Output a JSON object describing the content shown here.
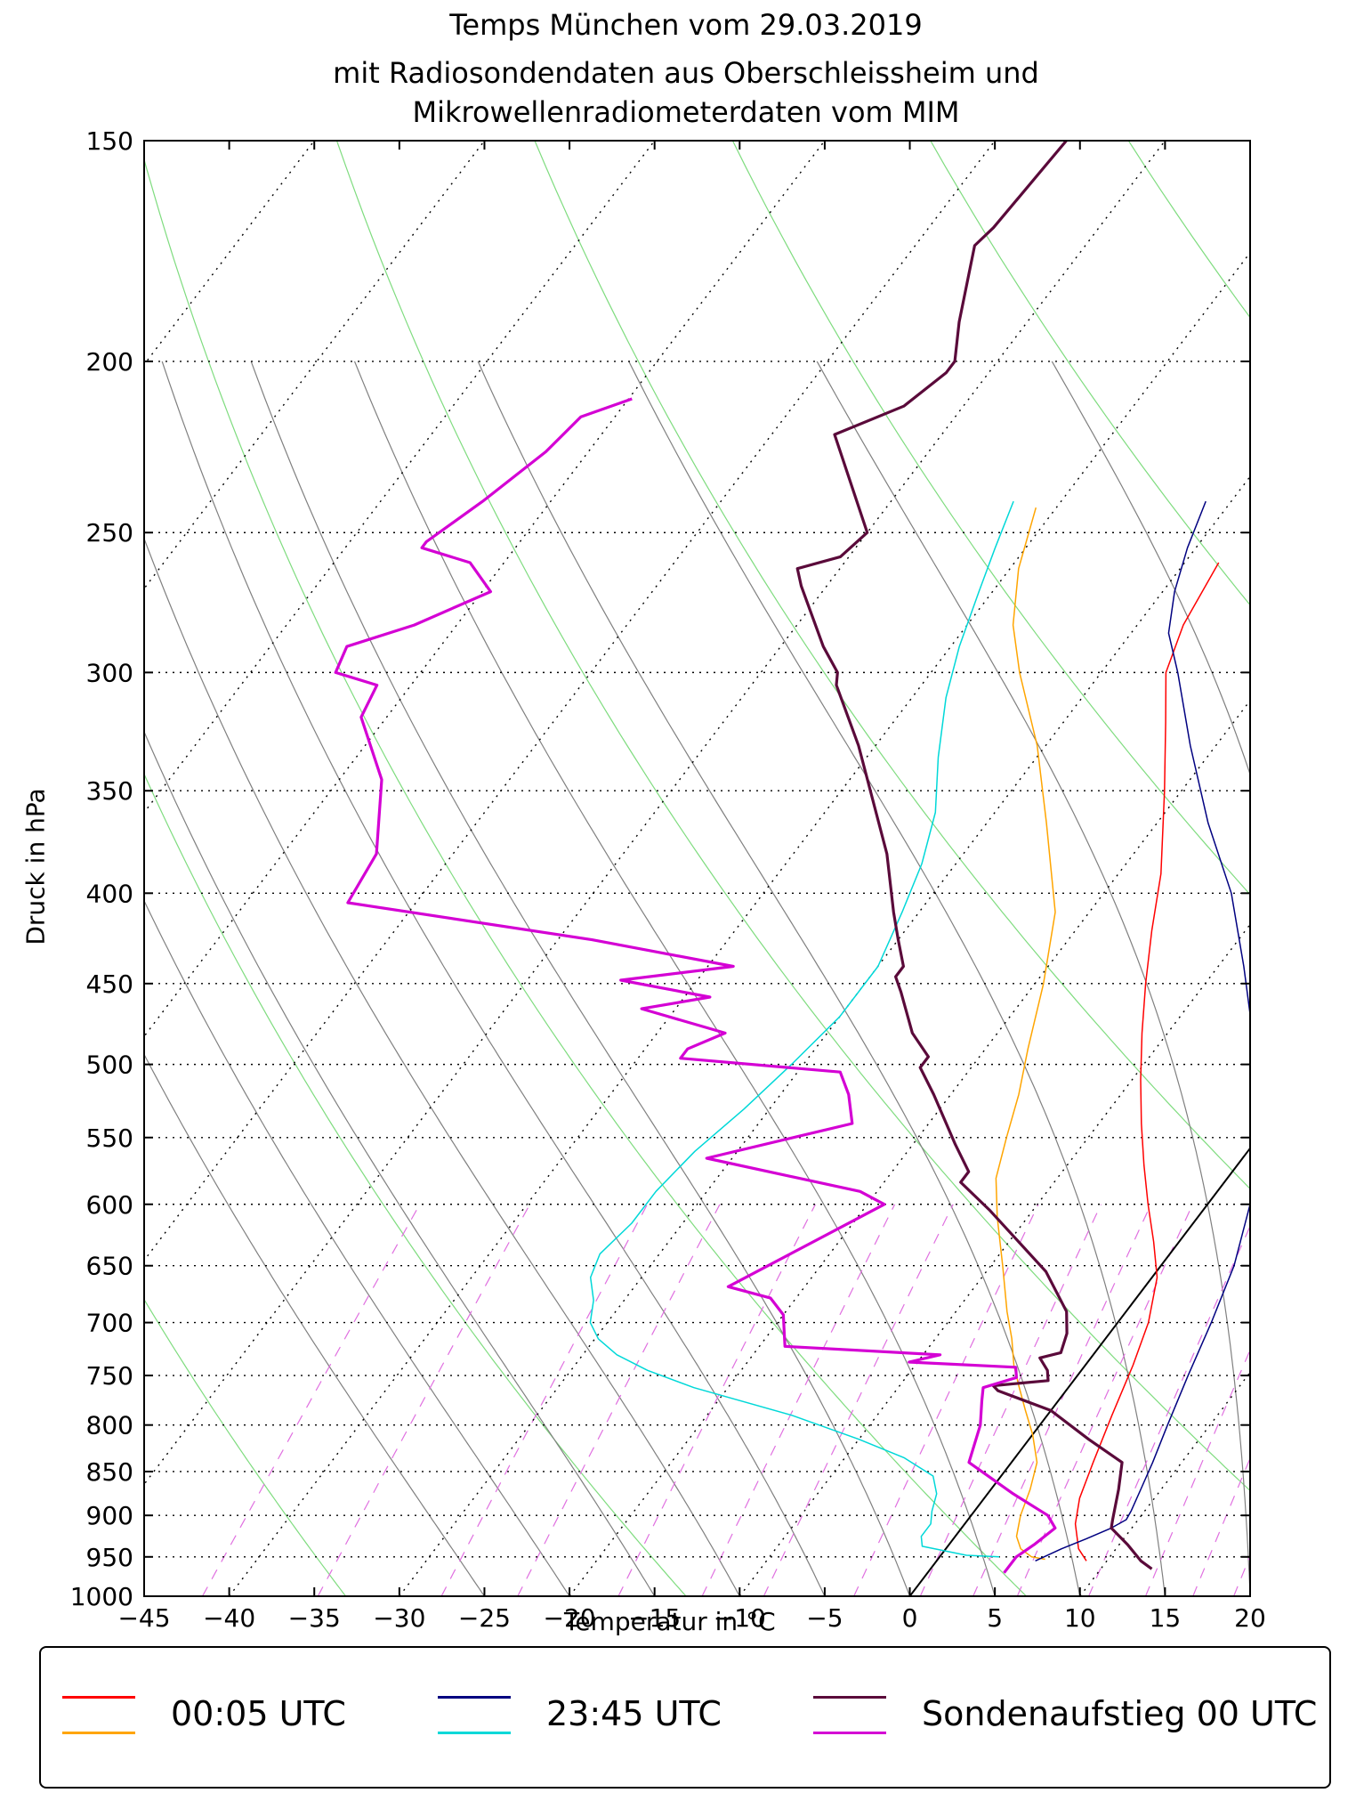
{
  "title": {
    "line1": "Temps München vom 29.03.2019",
    "line2": "mit Radiosondendaten aus Oberschleissheim und",
    "line3": "Mikrowellenradiometerdaten vom MIM"
  },
  "chart_data": {
    "type": "line",
    "subtype": "skew-T log-p diagram",
    "xlabel": "Temperatur in °C",
    "ylabel": "Druck in hPa",
    "xlim": [
      -45,
      20
    ],
    "ylim": [
      1000,
      150
    ],
    "yscale": "log",
    "x_ticks": [
      -45,
      -40,
      -35,
      -30,
      -25,
      -20,
      -15,
      -10,
      -5,
      0,
      5,
      10,
      15,
      20
    ],
    "x_tick_labels": [
      "−45",
      "−40",
      "−35",
      "−30",
      "−25",
      "−20",
      "−15",
      "−10",
      "−5",
      "0",
      "5",
      "10",
      "15",
      "20"
    ],
    "y_ticks": [
      150,
      200,
      250,
      300,
      350,
      400,
      450,
      500,
      550,
      600,
      650,
      700,
      750,
      800,
      850,
      900,
      950,
      1000
    ],
    "legend_position": "bottom",
    "series": [
      {
        "name": "00:05 UTC",
        "variable": "temperature",
        "color": "#ff0000",
        "width": 1.5,
        "points": [
          [
            -28,
            260
          ],
          [
            -27.3,
            282
          ],
          [
            -26.2,
            300
          ],
          [
            -24,
            320
          ],
          [
            -21,
            350
          ],
          [
            -17.5,
            390
          ],
          [
            -15.5,
            420
          ],
          [
            -13.5,
            450
          ],
          [
            -11.5,
            480
          ],
          [
            -9.5,
            510
          ],
          [
            -7.5,
            540
          ],
          [
            -5.5,
            570
          ],
          [
            -3.5,
            600
          ],
          [
            -1.5,
            630
          ],
          [
            0.3,
            660
          ],
          [
            1.8,
            700
          ],
          [
            2.8,
            740
          ],
          [
            3.8,
            790
          ],
          [
            4.8,
            840
          ],
          [
            5.6,
            880
          ],
          [
            6.5,
            910
          ],
          [
            7.8,
            940
          ],
          [
            8.8,
            955
          ]
        ]
      },
      {
        "name": "00:05 UTC",
        "variable": "dewpoint",
        "color": "#ffa500",
        "width": 1.5,
        "points": [
          [
            -41.2,
            242
          ],
          [
            -39.5,
            262
          ],
          [
            -37.3,
            282
          ],
          [
            -34.8,
            300
          ],
          [
            -30.5,
            330
          ],
          [
            -26.5,
            365
          ],
          [
            -22,
            410
          ],
          [
            -19.5,
            450
          ],
          [
            -17.5,
            490
          ],
          [
            -16,
            520
          ],
          [
            -14.8,
            550
          ],
          [
            -13.6,
            580
          ],
          [
            -11.8,
            610
          ],
          [
            -9.3,
            650
          ],
          [
            -7,
            690
          ],
          [
            -5.5,
            715
          ],
          [
            -4.2,
            740
          ],
          [
            -3,
            760
          ],
          [
            -1.5,
            785
          ],
          [
            0,
            810
          ],
          [
            1.5,
            840
          ],
          [
            2.3,
            870
          ],
          [
            2.9,
            900
          ],
          [
            3.6,
            925
          ],
          [
            4.4,
            940
          ],
          [
            5.4,
            950
          ],
          [
            6.3,
            953
          ]
        ]
      },
      {
        "name": "23:45 UTC",
        "variable": "temperature",
        "color": "#000080",
        "width": 1.5,
        "points": [
          [
            -31.5,
            240
          ],
          [
            -30.5,
            255
          ],
          [
            -29.3,
            270
          ],
          [
            -27.8,
            285
          ],
          [
            -25.5,
            300
          ],
          [
            -21.5,
            330
          ],
          [
            -17,
            365
          ],
          [
            -12.5,
            400
          ],
          [
            -8.5,
            440
          ],
          [
            -5,
            480
          ],
          [
            -2,
            520
          ],
          [
            0.3,
            560
          ],
          [
            2.5,
            600
          ],
          [
            4.3,
            650
          ],
          [
            5.5,
            700
          ],
          [
            6.5,
            750
          ],
          [
            7.5,
            800
          ],
          [
            8.3,
            840
          ],
          [
            8.8,
            870
          ],
          [
            9.2,
            895
          ],
          [
            9.3,
            905
          ],
          [
            8.8,
            915
          ],
          [
            7.8,
            928
          ],
          [
            6.8,
            940
          ],
          [
            5.8,
            955
          ]
        ]
      },
      {
        "name": "23:45 UTC",
        "variable": "dewpoint",
        "color": "#00d8d8",
        "width": 1.5,
        "points": [
          [
            -42.8,
            240
          ],
          [
            -41.8,
            255
          ],
          [
            -40.8,
            270
          ],
          [
            -39.5,
            290
          ],
          [
            -38,
            310
          ],
          [
            -35.8,
            335
          ],
          [
            -33.5,
            360
          ],
          [
            -32,
            385
          ],
          [
            -31,
            410
          ],
          [
            -30,
            440
          ],
          [
            -30,
            470
          ],
          [
            -30.7,
            500
          ],
          [
            -31.5,
            530
          ],
          [
            -32.5,
            560
          ],
          [
            -33,
            590
          ],
          [
            -33,
            615
          ],
          [
            -33.5,
            640
          ],
          [
            -33,
            660
          ],
          [
            -31.8,
            680
          ],
          [
            -31,
            700
          ],
          [
            -29.8,
            715
          ],
          [
            -28,
            730
          ],
          [
            -25.5,
            745
          ],
          [
            -22,
            762
          ],
          [
            -15,
            790
          ],
          [
            -10,
            815
          ],
          [
            -6.5,
            835
          ],
          [
            -4,
            855
          ],
          [
            -3,
            875
          ],
          [
            -2.5,
            895
          ],
          [
            -2,
            910
          ],
          [
            -2,
            925
          ],
          [
            -1.5,
            937
          ],
          [
            1.5,
            948
          ],
          [
            3.5,
            950
          ]
        ]
      },
      {
        "name": "Sondenaufstieg 00 UTC",
        "variable": "temperature",
        "color": "#5a0a3a",
        "width": 3.2,
        "points": [
          [
            -55.8,
            150
          ],
          [
            -56.2,
            168
          ],
          [
            -56.5,
            172
          ],
          [
            -54,
            190
          ],
          [
            -52.5,
            200
          ],
          [
            -52.5,
            203
          ],
          [
            -53.5,
            212
          ],
          [
            -56.3,
            220
          ],
          [
            -50,
            250
          ],
          [
            -50.5,
            258
          ],
          [
            -52.5,
            262
          ],
          [
            -51.5,
            268
          ],
          [
            -47.5,
            290
          ],
          [
            -45.5,
            300
          ],
          [
            -45,
            305
          ],
          [
            -41,
            330
          ],
          [
            -34.5,
            380
          ],
          [
            -31.5,
            410
          ],
          [
            -30,
            425
          ],
          [
            -28.5,
            440
          ],
          [
            -28.5,
            446
          ],
          [
            -27.5,
            455
          ],
          [
            -25,
            480
          ],
          [
            -23,
            495
          ],
          [
            -23,
            502
          ],
          [
            -21,
            520
          ],
          [
            -17.5,
            555
          ],
          [
            -15.5,
            575
          ],
          [
            -15.5,
            583
          ],
          [
            -12.5,
            605
          ],
          [
            -6.5,
            655
          ],
          [
            -3.5,
            690
          ],
          [
            -2.5,
            710
          ],
          [
            -2,
            728
          ],
          [
            -3,
            733
          ],
          [
            -2,
            745
          ],
          [
            -1.5,
            755
          ],
          [
            -4.5,
            760
          ],
          [
            -4,
            765
          ],
          [
            0,
            785
          ],
          [
            3.5,
            815
          ],
          [
            6.5,
            840
          ],
          [
            7.5,
            870
          ],
          [
            8.5,
            905
          ],
          [
            8.8,
            915
          ],
          [
            10.5,
            935
          ],
          [
            12,
            955
          ],
          [
            13,
            965
          ]
        ]
      },
      {
        "name": "Sondenaufstieg 00 UTC",
        "variable": "dewpoint",
        "color": "#d400d4",
        "width": 3.2,
        "points": [
          [
            -69.8,
            210
          ],
          [
            -72,
            215
          ],
          [
            -72.5,
            225
          ],
          [
            -74,
            240
          ],
          [
            -75.5,
            253
          ],
          [
            -75.5,
            255
          ],
          [
            -72,
            260
          ],
          [
            -69.5,
            270
          ],
          [
            -72.5,
            282
          ],
          [
            -75.5,
            290
          ],
          [
            -75,
            300
          ],
          [
            -72,
            305
          ],
          [
            -71.5,
            318
          ],
          [
            -67.5,
            345
          ],
          [
            -64.5,
            380
          ],
          [
            -64,
            405
          ],
          [
            -48,
            425
          ],
          [
            -38.5,
            440
          ],
          [
            -44.5,
            448
          ],
          [
            -38.5,
            458
          ],
          [
            -42,
            465
          ],
          [
            -36,
            480
          ],
          [
            -37.5,
            490
          ],
          [
            -37.5,
            496
          ],
          [
            -27.5,
            505
          ],
          [
            -26,
            520
          ],
          [
            -24.5,
            540
          ],
          [
            -31.5,
            565
          ],
          [
            -21,
            590
          ],
          [
            -19,
            600
          ],
          [
            -24.5,
            668
          ],
          [
            -21.5,
            678
          ],
          [
            -20,
            693
          ],
          [
            -18.5,
            722
          ],
          [
            -9,
            730
          ],
          [
            -10.5,
            737
          ],
          [
            -4,
            742
          ],
          [
            -3.5,
            752
          ],
          [
            -5,
            762
          ],
          [
            -4.5,
            775
          ],
          [
            -3.5,
            800
          ],
          [
            -2.5,
            840
          ],
          [
            1.5,
            875
          ],
          [
            4.5,
            900
          ],
          [
            5.5,
            915
          ],
          [
            5,
            935
          ],
          [
            4.5,
            950
          ],
          [
            4.5,
            970
          ]
        ]
      }
    ],
    "background_lines": {
      "isotherm_color": "#000000",
      "dry_adiabat_color": "#00b000",
      "moist_adiabat_color": "#555555",
      "mixing_ratio_color": "#e060e0",
      "freezing_line_color": "#000000"
    }
  },
  "legend": {
    "entries": [
      {
        "label": "00:05 UTC",
        "color_top": "#ff0000",
        "color_bottom": "#ffa500"
      },
      {
        "label": "23:45 UTC",
        "color_top": "#000080",
        "color_bottom": "#00d8d8"
      },
      {
        "label": "Sondenaufstieg 00 UTC",
        "color_top": "#5a0a3a",
        "color_bottom": "#d400d4"
      }
    ]
  }
}
